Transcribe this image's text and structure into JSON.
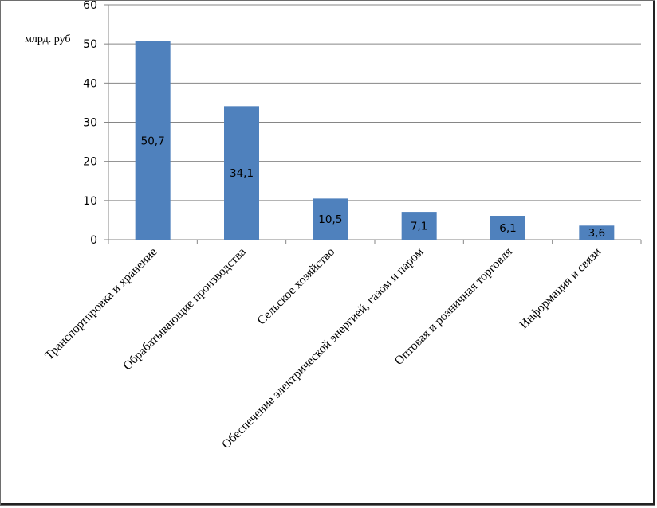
{
  "chart_data": {
    "type": "bar",
    "ylabel": "млрд. руб",
    "ylim": [
      0,
      60
    ],
    "yticks": [
      0,
      10,
      20,
      30,
      40,
      50,
      60
    ],
    "categories": [
      "Транспортировка и хранение",
      "Обрабатывающие производства",
      "Сельское хозяйство",
      "Обеспечение электрической энергией, газом и паром",
      "Оптовая и розничная торговля",
      "Информация и связи"
    ],
    "values": [
      50.7,
      34.1,
      10.5,
      7.1,
      6.1,
      3.6
    ],
    "data_labels": [
      "50,7",
      "34,1",
      "10,5",
      "7,1",
      "6,1",
      "3,6"
    ],
    "bar_color": "#4f81bd",
    "grid": true,
    "legend": "none"
  }
}
